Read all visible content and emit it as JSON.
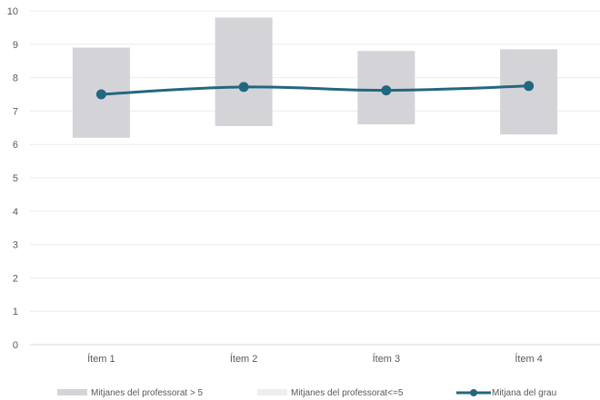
{
  "chart_data": {
    "type": "bar",
    "categories": [
      "Ítem 1",
      "Ítem 2",
      "Ítem 3",
      "Ítem 4"
    ],
    "ylim": [
      0,
      10
    ],
    "y_ticks": [
      0,
      1,
      2,
      3,
      4,
      5,
      6,
      7,
      8,
      9,
      10
    ],
    "grid": true,
    "legend_position": "bottom",
    "series": [
      {
        "name": "Mitjanes del professorat > 5",
        "kind": "range",
        "low": [
          6.2,
          6.55,
          6.6,
          6.3
        ],
        "high": [
          8.9,
          9.8,
          8.8,
          8.85
        ],
        "color": "#d4d4d8"
      },
      {
        "name": "Mitjanes del professorat<=5",
        "kind": "range",
        "low": [],
        "high": [],
        "color": "#eeeeee"
      },
      {
        "name": "Mitjana del grau",
        "kind": "line",
        "values": [
          7.5,
          7.72,
          7.62,
          7.75
        ],
        "color": "#22677f"
      }
    ]
  }
}
